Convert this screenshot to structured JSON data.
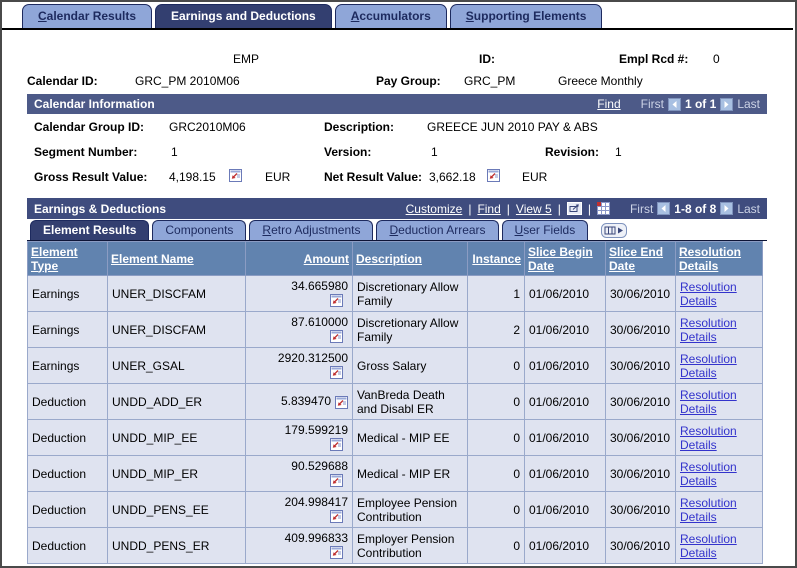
{
  "main_tabs": [
    {
      "label": "Calendar Results",
      "accesskey": "C",
      "active": false
    },
    {
      "label": "Earnings and Deductions",
      "accesskey": "",
      "active": true
    },
    {
      "label": "Accumulators",
      "accesskey": "A",
      "active": false
    },
    {
      "label": "Supporting Elements",
      "accesskey": "S",
      "active": false
    }
  ],
  "header": {
    "empl_type": "EMP",
    "id_label": "ID:",
    "empl_rcd_label": "Empl Rcd #:",
    "empl_rcd_value": "0",
    "calendar_id_label": "Calendar ID:",
    "calendar_id_value": "GRC_PM 2010M06",
    "pay_group_label": "Pay Group:",
    "pay_group_value": "GRC_PM",
    "pay_group_description": "Greece Monthly"
  },
  "calendar_information": {
    "title": "Calendar Information",
    "find_link": "Find",
    "nav": {
      "first": "First",
      "count": "1 of 1",
      "last": "Last"
    },
    "calendar_group_id_label": "Calendar Group ID:",
    "calendar_group_id": "GRC2010M06",
    "description_label": "Description:",
    "description": "GREECE JUN 2010 PAY & ABS",
    "segment_number_label": "Segment Number:",
    "segment_number": "1",
    "version_label": "Version:",
    "version": "1",
    "revision_label": "Revision:",
    "revision": "1",
    "gross_result_label": "Gross Result Value:",
    "gross_result_value": "4,198.15",
    "gross_currency": "EUR",
    "net_result_label": "Net Result Value:",
    "net_result_value": "3,662.18",
    "net_currency": "EUR"
  },
  "earnings_deductions": {
    "title": "Earnings & Deductions",
    "toolbar": {
      "customize": "Customize",
      "find": "Find",
      "view": "View 5",
      "separator": "|"
    },
    "nav": {
      "first": "First",
      "count": "1-8 of 8",
      "last": "Last"
    },
    "sub_tabs": [
      {
        "label": "Element Results",
        "accesskey": "",
        "active": true
      },
      {
        "label": "Components",
        "accesskey": "",
        "active": false
      },
      {
        "label": "Retro Adjustments",
        "accesskey": "R",
        "active": false
      },
      {
        "label": "Deduction Arrears",
        "accesskey": "D",
        "active": false
      },
      {
        "label": "User Fields",
        "accesskey": "U",
        "active": false
      }
    ],
    "table": {
      "columns": [
        "Element Type",
        "Element Name",
        "Amount",
        "Description",
        "Instance",
        "Slice Begin Date",
        "Slice End Date",
        "Resolution Details"
      ],
      "resolution_link_label": "Resolution Details",
      "rows": [
        {
          "element_type": "Earnings",
          "element_name": "UNER_DISCFAM",
          "amount": "34.665980",
          "amount_icon_inline": false,
          "description": "Discretionary Allow Family",
          "instance": "1",
          "slice_begin_date": "01/06/2010",
          "slice_end_date": "30/06/2010"
        },
        {
          "element_type": "Earnings",
          "element_name": "UNER_DISCFAM",
          "amount": "87.610000",
          "amount_icon_inline": false,
          "description": "Discretionary Allow Family",
          "instance": "2",
          "slice_begin_date": "01/06/2010",
          "slice_end_date": "30/06/2010"
        },
        {
          "element_type": "Earnings",
          "element_name": "UNER_GSAL",
          "amount": "2920.312500",
          "amount_icon_inline": false,
          "description": "Gross Salary",
          "instance": "0",
          "slice_begin_date": "01/06/2010",
          "slice_end_date": "30/06/2010"
        },
        {
          "element_type": "Deduction",
          "element_name": "UNDD_ADD_ER",
          "amount": "5.839470",
          "amount_icon_inline": true,
          "description": "VanBreda Death and Disabl ER",
          "instance": "0",
          "slice_begin_date": "01/06/2010",
          "slice_end_date": "30/06/2010"
        },
        {
          "element_type": "Deduction",
          "element_name": "UNDD_MIP_EE",
          "amount": "179.599219",
          "amount_icon_inline": false,
          "description": "Medical - MIP EE",
          "instance": "0",
          "slice_begin_date": "01/06/2010",
          "slice_end_date": "30/06/2010"
        },
        {
          "element_type": "Deduction",
          "element_name": "UNDD_MIP_ER",
          "amount": "90.529688",
          "amount_icon_inline": false,
          "description": "Medical - MIP ER",
          "instance": "0",
          "slice_begin_date": "01/06/2010",
          "slice_end_date": "30/06/2010"
        },
        {
          "element_type": "Deduction",
          "element_name": "UNDD_PENS_EE",
          "amount": "204.998417",
          "amount_icon_inline": false,
          "description": "Employee Pension Contribution",
          "instance": "0",
          "slice_begin_date": "01/06/2010",
          "slice_end_date": "30/06/2010"
        },
        {
          "element_type": "Deduction",
          "element_name": "UNDD_PENS_ER",
          "amount": "409.996833",
          "amount_icon_inline": false,
          "description": "Employer Pension Contribution",
          "instance": "0",
          "slice_begin_date": "01/06/2010",
          "slice_end_date": "30/06/2010"
        }
      ]
    }
  },
  "colors": {
    "tab_active_bg": "#333f70",
    "tab_inactive_bg": "#8fa6d8",
    "tab_border": "#1d2a5e",
    "ci_bar_bg": "#4d5a88",
    "ed_bar_bg": "#3f4c7e",
    "grid_header_bg": "#6183af",
    "grid_row_bg": "#dfe3f0",
    "grid_border": "#9aa9cb",
    "link_blue": "#3333cc",
    "nav_button_bg": "#a8c0e2",
    "nav_dim_text": "#ccd3e6"
  }
}
